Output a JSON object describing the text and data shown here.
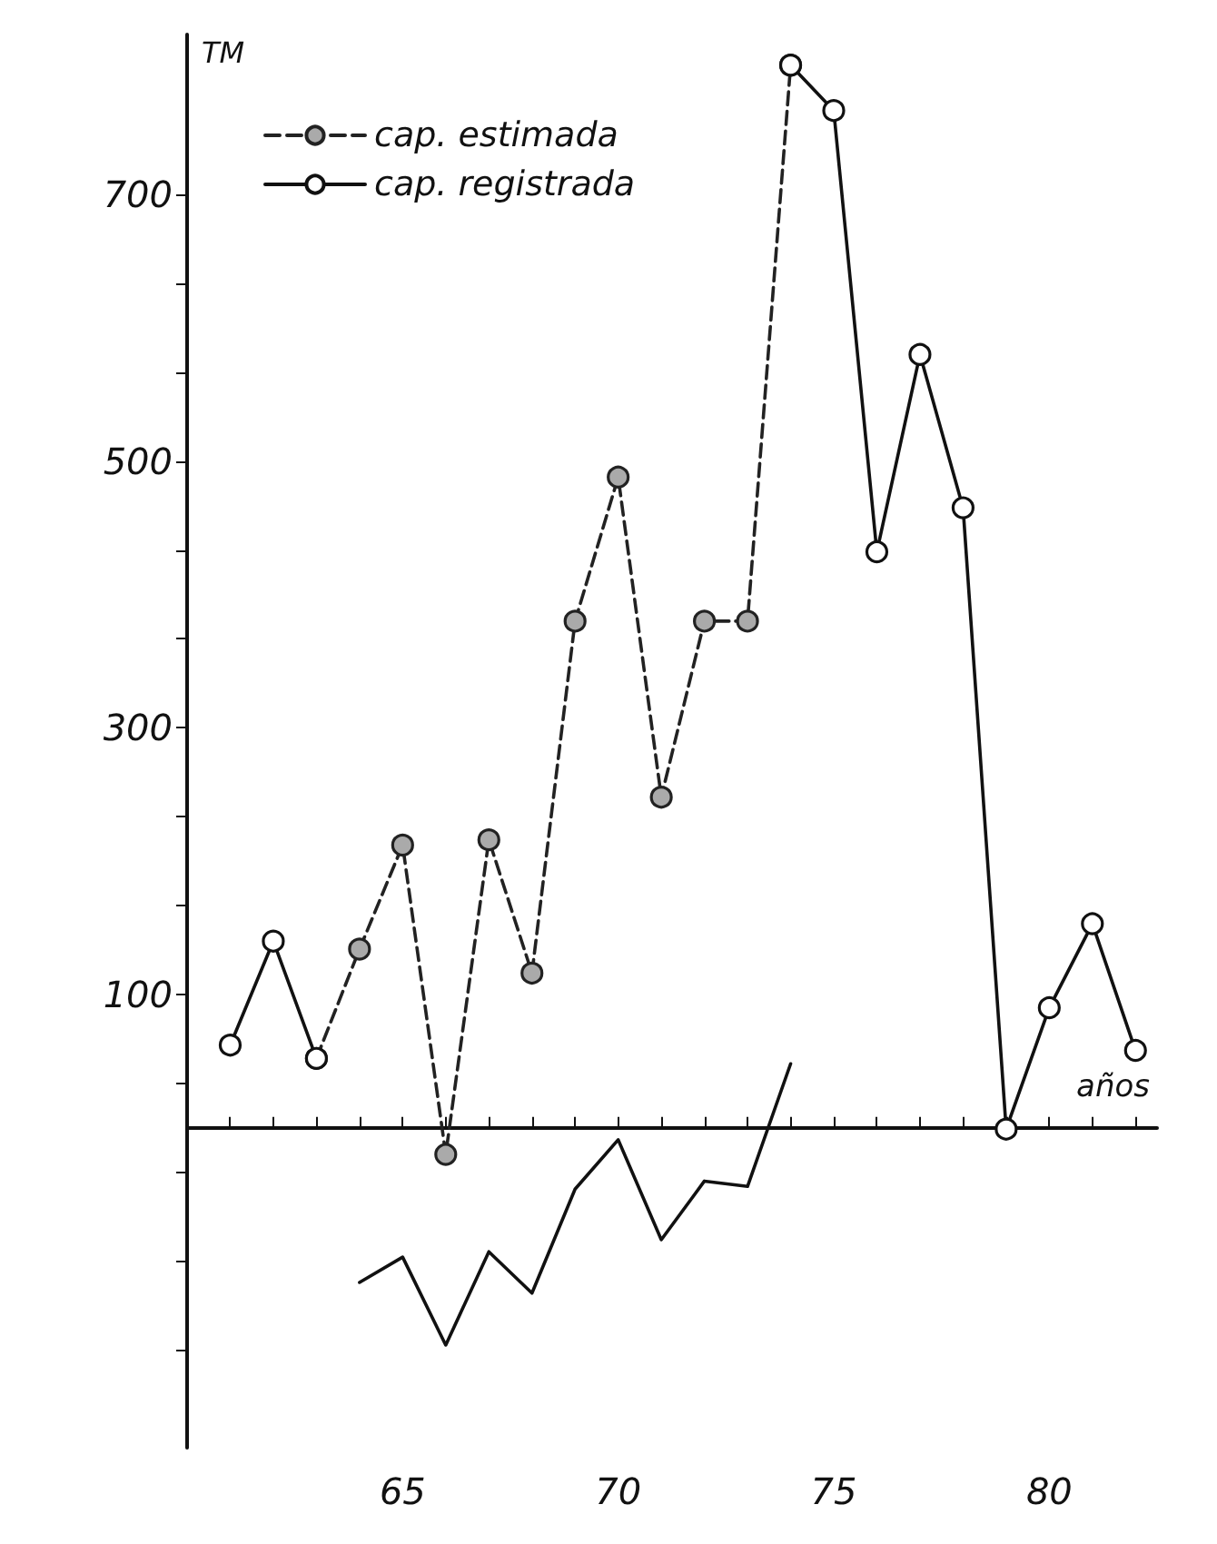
{
  "chart_data": {
    "type": "line",
    "xlabel": "años",
    "ylabel": "TM",
    "xlim": [
      60,
      82.5
    ],
    "xticks": [
      {
        "value": 61,
        "label": null
      },
      {
        "value": 62,
        "label": null
      },
      {
        "value": 63,
        "label": null
      },
      {
        "value": 64,
        "label": null
      },
      65,
      {
        "value": 66,
        "label": null
      },
      {
        "value": 67,
        "label": null
      },
      {
        "value": 68,
        "label": null
      },
      {
        "value": 69,
        "label": null
      },
      70,
      {
        "value": 71,
        "label": null
      },
      {
        "value": 72,
        "label": null
      },
      {
        "value": 73,
        "label": null
      },
      {
        "value": 74,
        "label": null
      },
      75,
      {
        "value": 76,
        "label": null
      },
      {
        "value": 77,
        "label": null
      },
      {
        "value": 78,
        "label": null
      },
      {
        "value": 79,
        "label": null
      },
      80,
      {
        "value": 81,
        "label": null
      },
      {
        "value": 82,
        "label": null
      }
    ],
    "ylim": [
      -240,
      820
    ],
    "yticks": [
      {
        "value": -166.7,
        "label": null
      },
      {
        "value": -100,
        "label": null
      },
      {
        "value": -33.3,
        "label": null
      },
      {
        "value": 33.3,
        "label": null
      },
      100,
      {
        "value": 166.7,
        "label": null
      },
      {
        "value": 233.3,
        "label": null
      },
      300,
      {
        "value": 366.7,
        "label": null
      },
      {
        "value": 433.3,
        "label": null
      },
      500,
      {
        "value": 566.7,
        "label": null
      },
      {
        "value": 633.3,
        "label": null
      },
      700
    ],
    "grid": false,
    "legend": "top left",
    "series": [
      {
        "name": "cap. estimada",
        "color": "#222222",
        "marker": "circle",
        "line_style": "dashed",
        "x": [
          63,
          64,
          65,
          66,
          67,
          68,
          69,
          70,
          71,
          72,
          73,
          74
        ],
        "values": [
          52,
          134,
          212,
          -20,
          216,
          116,
          380,
          488,
          248,
          380,
          380,
          797
        ]
      },
      {
        "name": "cap. registrada",
        "color": "#111111",
        "marker": "circle",
        "line_style": "solid",
        "x": [
          61,
          62,
          63,
          64,
          74,
          75,
          76,
          77,
          78,
          79,
          80,
          81,
          82
        ],
        "values": [
          62,
          140,
          52,
          null,
          797,
          763,
          432,
          580,
          465,
          -1,
          90,
          153,
          58
        ]
      },
      {
        "color": "#111111",
        "marker": "none",
        "line_style": "solid",
        "x": [
          64,
          65,
          66,
          67,
          68,
          69,
          70,
          71,
          72,
          73,
          74
        ],
        "values": [
          -116,
          -97,
          -163,
          -93,
          -124,
          -46,
          -9,
          -84,
          -40,
          -44,
          48
        ]
      }
    ]
  }
}
